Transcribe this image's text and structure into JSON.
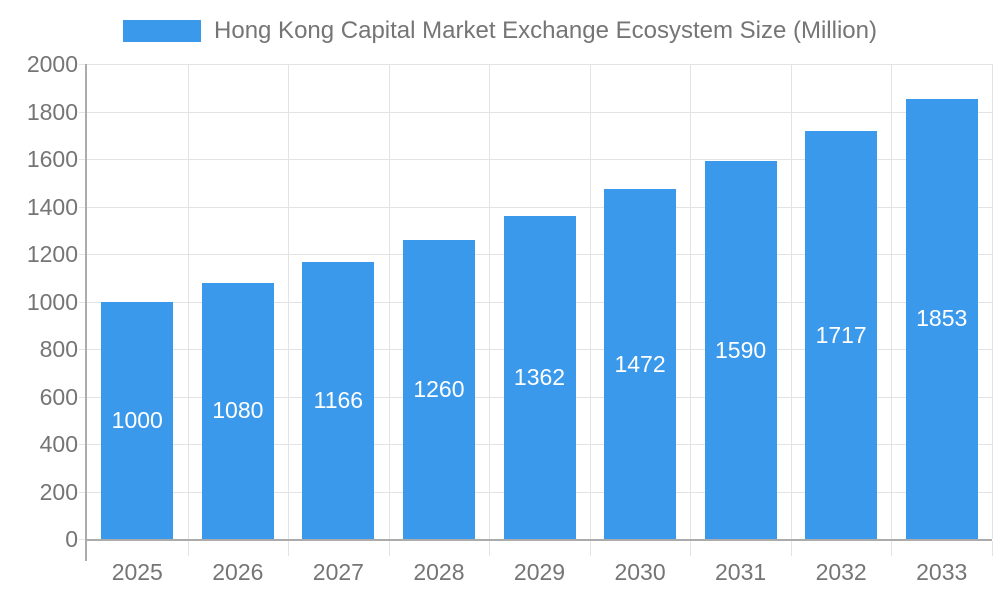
{
  "legend": {
    "label": "Hong Kong Capital Market Exchange Ecosystem Size (Million)"
  },
  "chart_data": {
    "type": "bar",
    "title": "Hong Kong Capital Market Exchange Ecosystem Size (Million)",
    "categories": [
      "2025",
      "2026",
      "2027",
      "2028",
      "2029",
      "2030",
      "2031",
      "2032",
      "2033"
    ],
    "values": [
      1000,
      1080,
      1166,
      1260,
      1362,
      1472,
      1590,
      1717,
      1853
    ],
    "value_labels_shown": true,
    "xlabel": "",
    "ylabel": "",
    "ylim": [
      0,
      2000
    ],
    "y_ticks": [
      0,
      200,
      400,
      600,
      800,
      1000,
      1200,
      1400,
      1600,
      1800,
      2000
    ],
    "grid": "horizontal-and-vertical",
    "legend_position": "top-center"
  },
  "colors": {
    "bar": "#3b99ec",
    "axis_line": "#ababab",
    "gridline": "#e3e3e3",
    "axis_text": "#757575",
    "title_text": "#757575",
    "value_label": "#ffffff",
    "background": "#ffffff"
  }
}
